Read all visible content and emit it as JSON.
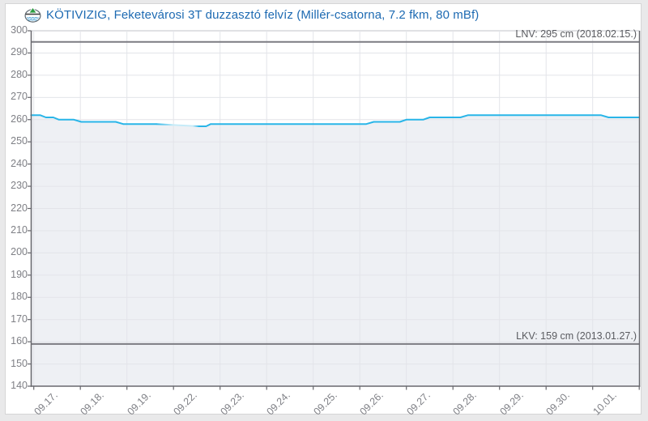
{
  "header": {
    "title": "KÖTIVIZIG, Feketevárosi 3T duzzasztó felvíz (Millér-csatorna, 7.2 fkm, 80 mBf)",
    "icon": "weir-gauge-icon"
  },
  "colors": {
    "title": "#1d6ab2",
    "line": "#29b5e8",
    "line_faded": "#c6ebf8",
    "area": "#eef0f4",
    "grid": "#e3e4e9",
    "axis": "#68686e",
    "refline": "#7c7c82"
  },
  "chart_data": {
    "type": "line",
    "title": "KÖTIVIZIG, Feketevárosi 3T duzzasztó felvíz (Millér-csatorna, 7.2 fkm, 80 mBf)",
    "xlabel": "",
    "ylabel": "",
    "unit": "cm",
    "ylim": [
      140,
      300
    ],
    "ytick_step": 10,
    "grid": true,
    "x_tick_labels": [
      "09.17.",
      "09.18.",
      "09.19.",
      "09.22.",
      "09.23.",
      "09.24.",
      "09.25.",
      "09.26.",
      "09.27.",
      "09.28.",
      "09.29.",
      "09.30.",
      "10.01."
    ],
    "series": [
      {
        "name": "water-level-cm",
        "color": "#29b5e8",
        "points": [
          [
            -0.06,
            262
          ],
          [
            0.14,
            262
          ],
          [
            0.26,
            261
          ],
          [
            0.42,
            261
          ],
          [
            0.54,
            260
          ],
          [
            0.86,
            260
          ],
          [
            1.02,
            259
          ],
          [
            1.76,
            259
          ],
          [
            1.92,
            258
          ],
          [
            2.63,
            258
          ],
          [
            3.55,
            257
          ],
          [
            3.7,
            257
          ],
          [
            3.8,
            258
          ],
          [
            7.14,
            258
          ],
          [
            7.3,
            259
          ],
          [
            7.86,
            259
          ],
          [
            8.0,
            260
          ],
          [
            8.36,
            260
          ],
          [
            8.5,
            261
          ],
          [
            9.16,
            261
          ],
          [
            9.32,
            262
          ],
          [
            12.18,
            262
          ],
          [
            12.34,
            261
          ],
          [
            13.0,
            261
          ]
        ],
        "faded_segment_point_indices": [
          9,
          10
        ]
      }
    ],
    "reference_lines": [
      {
        "id": "LNV",
        "label": "LNV: 295 cm (2018.02.15.)",
        "value": 295
      },
      {
        "id": "LKV",
        "label": "LKV: 159 cm (2013.01.27.)",
        "value": 159
      }
    ],
    "legend": []
  }
}
